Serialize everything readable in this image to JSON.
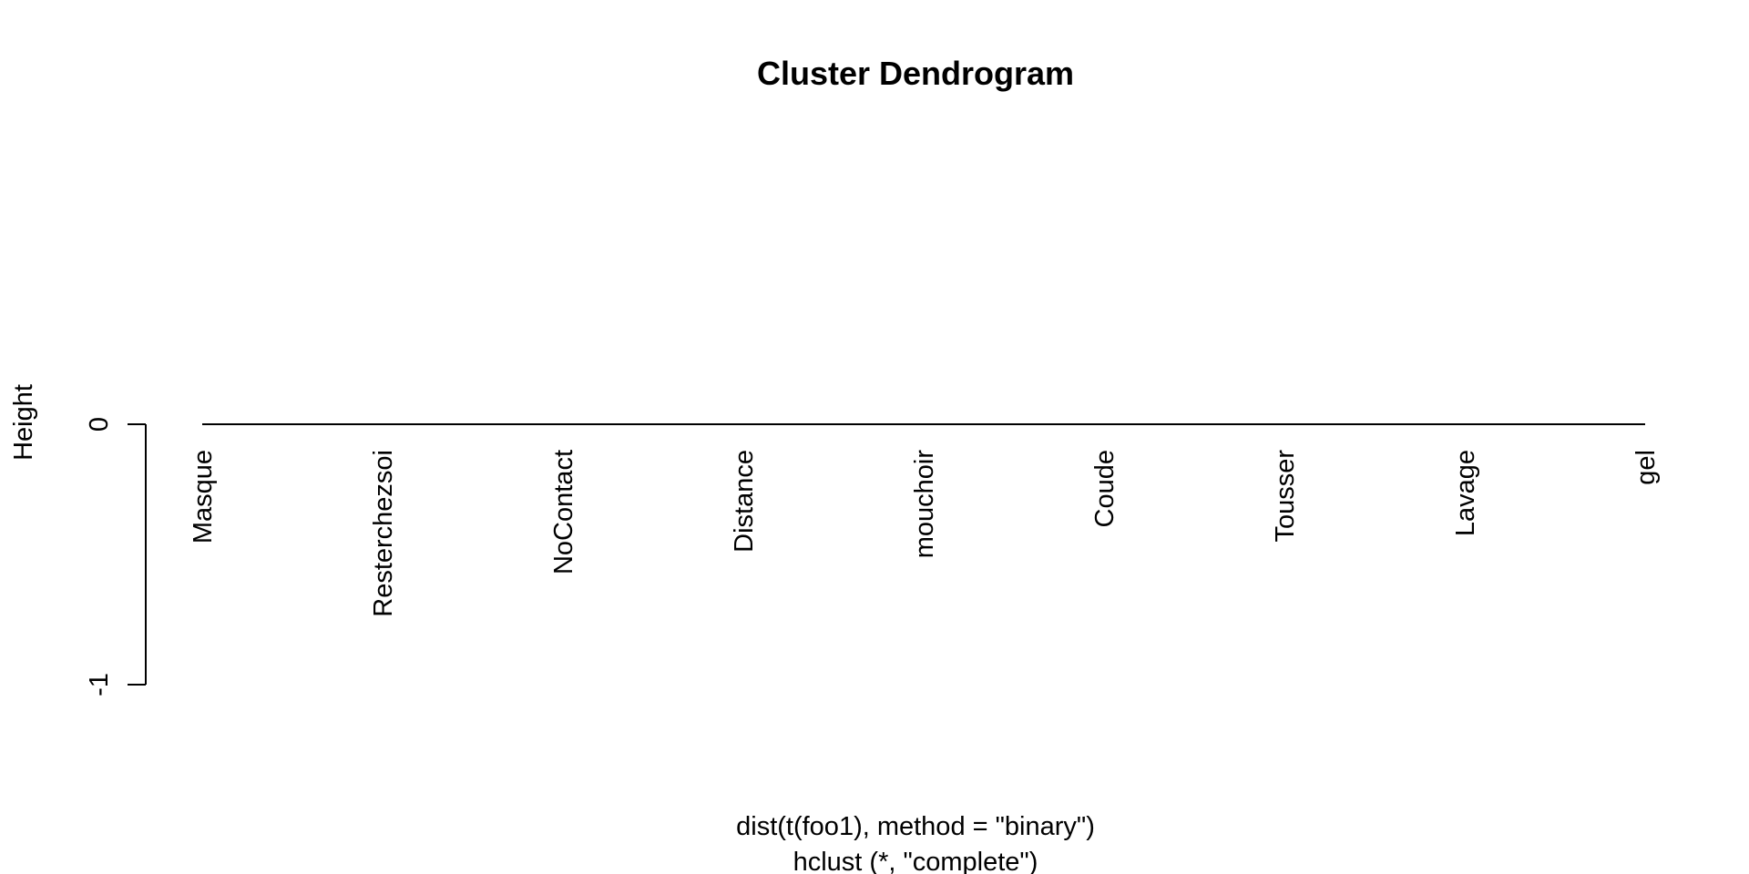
{
  "chart_data": {
    "type": "dendrogram",
    "title": "Cluster Dendrogram",
    "ylabel": "Height",
    "xlabel_lines": [
      "dist(t(foo1), method = \"binary\")",
      "hclust (*, \"complete\")"
    ],
    "y_ticks": [
      0,
      -1
    ],
    "y_tick_labels": [
      "0",
      "-1"
    ],
    "ylim": [
      -1,
      0
    ],
    "merge_height": 0,
    "leaves": [
      "Masque",
      "Resterchezsoi",
      "NoContact",
      "Distance",
      "mouchoir",
      "Coude",
      "Tousser",
      "Lavage",
      "gel"
    ],
    "grid": false,
    "legend": "none"
  }
}
